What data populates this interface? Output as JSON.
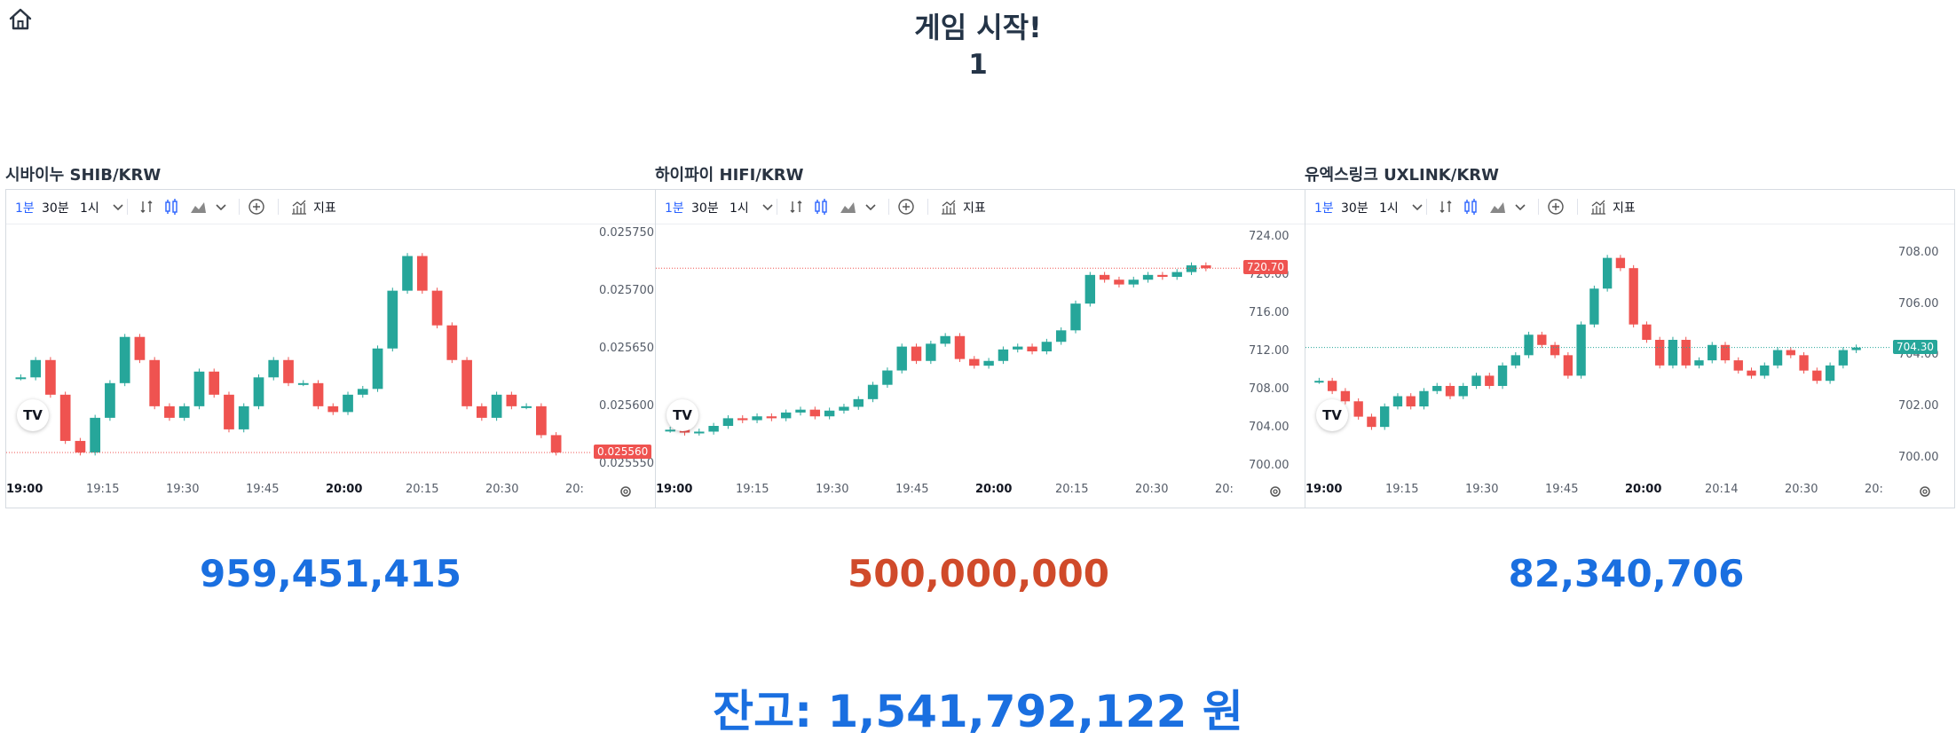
{
  "header": {
    "title": "게임 시작!",
    "round": "1"
  },
  "colors": {
    "up": "#26a69a",
    "down": "#ef5350",
    "accent_blue": "#1a6fe0",
    "accent_red": "#d04a2a",
    "balance_blue": "#1a6fe0"
  },
  "toolbar": {
    "tf_1m": "1분",
    "tf_30m": "30분",
    "tf_1h": "1시",
    "indicators": "지표"
  },
  "charts": [
    {
      "title": "시바이누 SHIB/KRW",
      "y_ticks": [
        "0.025750",
        "0.025700",
        "0.025650",
        "0.025600",
        "0.025550"
      ],
      "y_range": [
        0.02554,
        0.025755
      ],
      "x_ticks": [
        "19:00",
        "19:15",
        "19:30",
        "19:45",
        "20:00",
        "20:15",
        "20:30",
        "20:"
      ],
      "current_price": "0.025560",
      "price_color": "#ef5350",
      "trend": [
        0.025625,
        0.02564,
        0.02561,
        0.02557,
        0.02556,
        0.02559,
        0.02562,
        0.02566,
        0.02564,
        0.0256,
        0.02559,
        0.0256,
        0.02563,
        0.02561,
        0.02558,
        0.0256,
        0.025625,
        0.02564,
        0.02562,
        0.02562,
        0.0256,
        0.025595,
        0.02561,
        0.025615,
        0.02565,
        0.0257,
        0.02573,
        0.0257,
        0.02567,
        0.02564,
        0.0256,
        0.02559,
        0.02561,
        0.0256,
        0.0256,
        0.025575,
        0.02556
      ],
      "amount": "959,451,415",
      "amount_color": "#1a6fe0"
    },
    {
      "title": "하이파이 HIFI/KRW",
      "y_ticks": [
        "724.00",
        "720.00",
        "716.00",
        "712.00",
        "708.00",
        "704.00",
        "700.00"
      ],
      "y_range": [
        699.0,
        725.0
      ],
      "x_ticks": [
        "19:00",
        "19:15",
        "19:30",
        "19:45",
        "20:00",
        "20:15",
        "20:30",
        "20:"
      ],
      "current_price": "720.70",
      "price_color": "#ef5350",
      "trend": [
        703.8,
        703.5,
        703.6,
        704.2,
        705.0,
        704.8,
        705.2,
        705.0,
        705.6,
        705.9,
        705.2,
        705.8,
        706.2,
        707.0,
        708.5,
        710.0,
        712.5,
        711.0,
        712.8,
        713.6,
        711.2,
        710.5,
        711.0,
        712.2,
        712.5,
        712.0,
        713.0,
        714.2,
        717.0,
        720.0,
        719.5,
        719.0,
        719.5,
        720.0,
        719.8,
        720.3,
        721.0,
        720.7
      ],
      "amount": "500,000,000",
      "amount_color": "#d04a2a"
    },
    {
      "title": "유엑스링크 UXLINK/KRW",
      "y_ticks": [
        "708.00",
        "706.00",
        "704.00",
        "702.00",
        "700.00"
      ],
      "y_range": [
        699.3,
        709.0
      ],
      "x_ticks": [
        "19:00",
        "19:15",
        "19:30",
        "19:45",
        "20:00",
        "20:14",
        "20:30",
        "20:"
      ],
      "current_price": "704.30",
      "price_color": "#26a69a",
      "trend": [
        703.0,
        702.6,
        702.2,
        701.6,
        701.2,
        702.0,
        702.4,
        702.0,
        702.6,
        702.8,
        702.4,
        702.8,
        703.2,
        702.8,
        703.6,
        704.0,
        704.8,
        704.4,
        704.0,
        703.2,
        705.2,
        706.6,
        707.8,
        707.4,
        705.2,
        704.6,
        703.6,
        704.6,
        703.6,
        703.8,
        704.4,
        703.8,
        703.4,
        703.2,
        703.6,
        704.2,
        704.0,
        703.4,
        703.0,
        703.6,
        704.2,
        704.3
      ],
      "amount": "82,340,706",
      "amount_color": "#1a6fe0"
    }
  ],
  "balance": {
    "text": "잔고: 1,541,792,122 원"
  }
}
